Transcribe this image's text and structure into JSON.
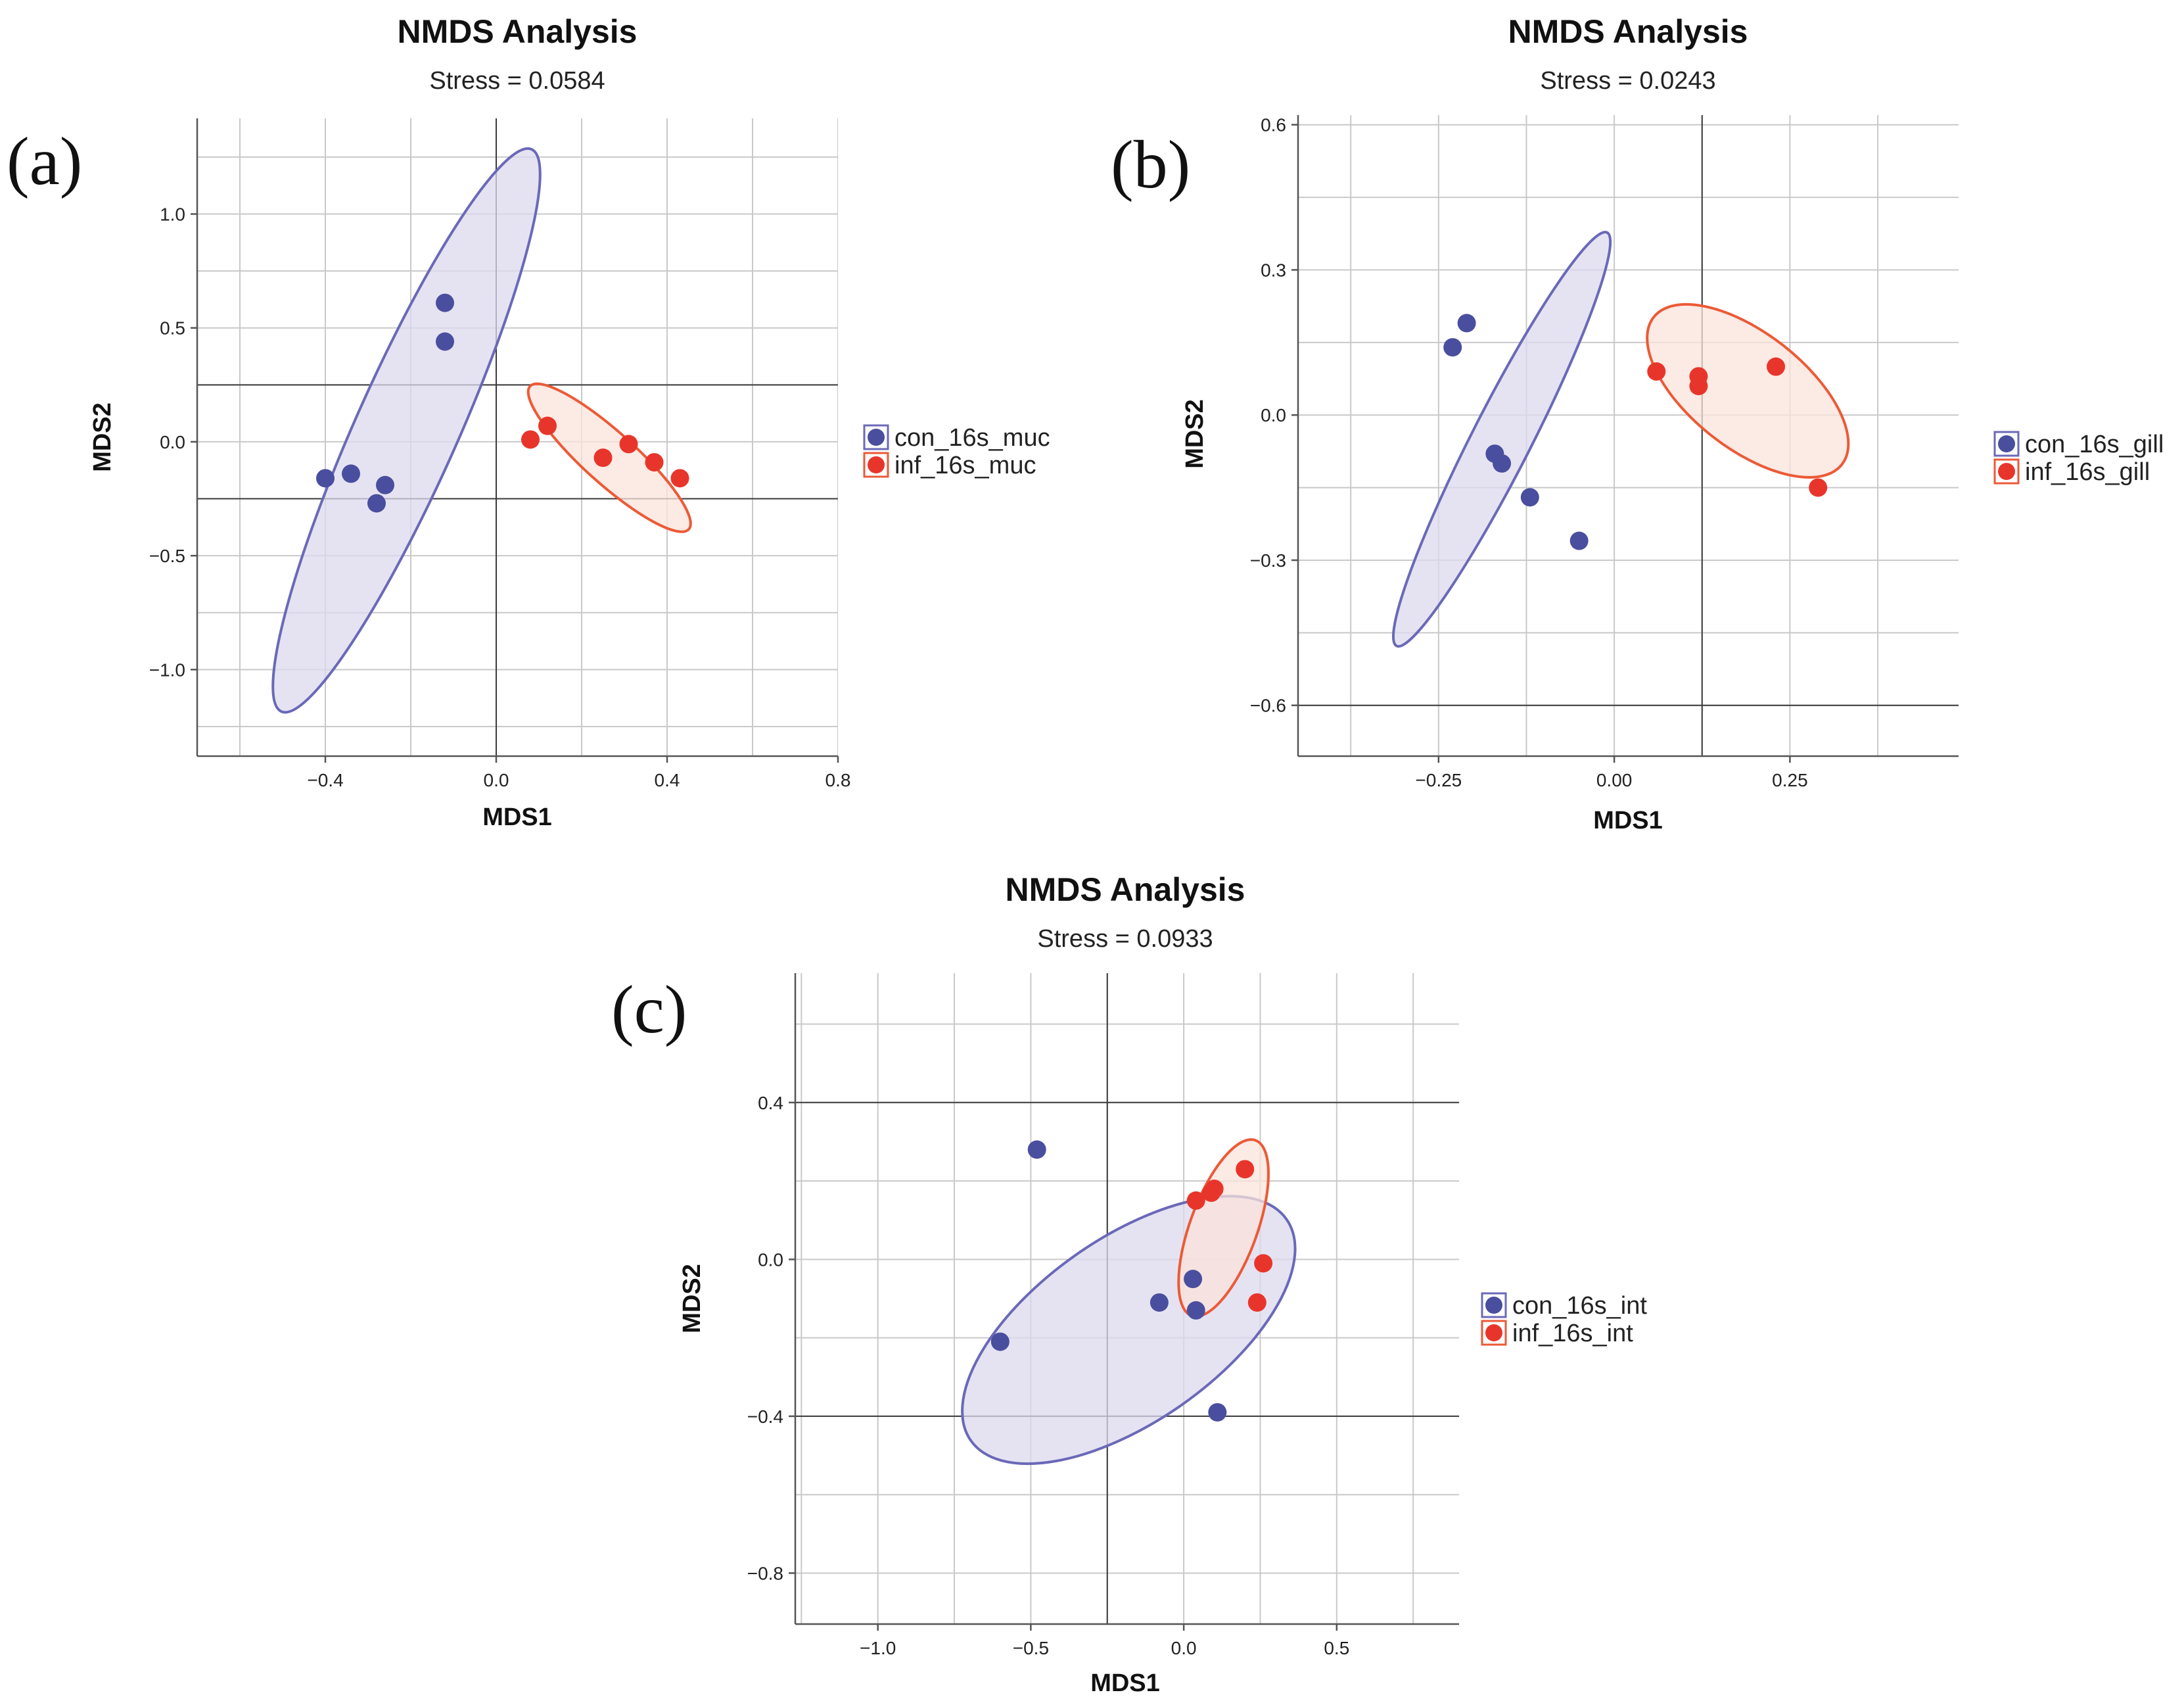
{
  "chart_data": [
    {
      "type": "scatter",
      "panel_tag": "(a)",
      "title": "NMDS Analysis",
      "subtitle": "Stress = 0.0584",
      "xlabel": "MDS1",
      "ylabel": "MDS2",
      "xlim": [
        -0.7,
        0.8
      ],
      "ylim": [
        -1.38,
        1.42
      ],
      "xticks": [
        -0.4,
        0.0,
        0.4,
        0.8
      ],
      "xtick_labels": [
        "−0.4",
        "0.0",
        "0.4",
        "0.8"
      ],
      "yticks": [
        1.0,
        0.5,
        0.0,
        -0.5,
        -1.0
      ],
      "ytick_labels": [
        "1.0",
        "0.5",
        "0.0",
        "−0.5",
        "−1.0"
      ],
      "xgrid": [
        -0.6,
        -0.4,
        -0.2,
        0.0,
        0.2,
        0.4,
        0.6,
        0.8
      ],
      "ygrid": [
        1.25,
        1.0,
        0.75,
        0.5,
        0.25,
        0.0,
        -0.25,
        -0.5,
        -0.75,
        -1.0,
        -1.25
      ],
      "ref_lines": {
        "x": [
          0.0
        ],
        "y": [
          0.25,
          -0.25
        ]
      },
      "series": [
        {
          "name": "con_16s_muc",
          "color": "#4a4e9e",
          "fill": "#dcd9ee",
          "edge": "#6a69b8",
          "x": [
            -0.12,
            -0.12,
            -0.4,
            -0.34,
            -0.26,
            -0.28
          ],
          "y": [
            0.61,
            0.44,
            -0.16,
            -0.14,
            -0.19,
            -0.27
          ],
          "ellipse": {
            "cx": -0.21,
            "cy": 0.05,
            "rx": 1.44,
            "ry": 0.12,
            "angle_deg": 66
          }
        },
        {
          "name": "inf_16s_muc",
          "color": "#e8352b",
          "fill": "#fbe3db",
          "edge": "#ec5a37",
          "x": [
            0.08,
            0.12,
            0.25,
            0.31,
            0.37,
            0.43
          ],
          "y": [
            0.01,
            0.07,
            -0.07,
            -0.01,
            -0.09,
            -0.16
          ],
          "ellipse": {
            "cx": 0.265,
            "cy": -0.07,
            "rx": 0.5,
            "ry": 0.06,
            "angle_deg": -42
          }
        }
      ],
      "legend_position": "right"
    },
    {
      "type": "scatter",
      "panel_tag": "(b)",
      "title": "NMDS Analysis",
      "subtitle": "Stress = 0.0243",
      "xlabel": "MDS1",
      "ylabel": "MDS2",
      "xlim": [
        -0.45,
        0.49
      ],
      "ylim": [
        -0.705,
        0.62
      ],
      "xticks": [
        -0.25,
        0.0,
        0.25
      ],
      "xtick_labels": [
        "−0.25",
        "0.00",
        "0.25"
      ],
      "yticks": [
        0.6,
        0.3,
        0.0,
        -0.3,
        -0.6
      ],
      "ytick_labels": [
        "0.6",
        "0.3",
        "0.0",
        "−0.3",
        "−0.6"
      ],
      "xgrid": [
        -0.375,
        -0.25,
        -0.125,
        0.0,
        0.125,
        0.25,
        0.375
      ],
      "ygrid": [
        0.6,
        0.45,
        0.3,
        0.15,
        0.0,
        -0.15,
        -0.3,
        -0.45,
        -0.6
      ],
      "ref_lines": {
        "x": [
          0.125
        ],
        "y": [
          -0.6
        ]
      },
      "series": [
        {
          "name": "con_16s_gill",
          "color": "#4a4e9e",
          "fill": "#dcd9ee",
          "edge": "#6a69b8",
          "x": [
            -0.23,
            -0.21,
            -0.17,
            -0.16,
            -0.12,
            -0.05
          ],
          "y": [
            0.14,
            0.19,
            -0.08,
            -0.1,
            -0.17,
            -0.26
          ],
          "ellipse": {
            "cx": -0.16,
            "cy": -0.05,
            "rx": 0.66,
            "ry": 0.042,
            "angle_deg": 63
          }
        },
        {
          "name": "inf_16s_gill",
          "color": "#e8352b",
          "fill": "#fbe3db",
          "edge": "#ec5a37",
          "x": [
            0.06,
            0.12,
            0.12,
            0.23,
            0.29
          ],
          "y": [
            0.09,
            0.06,
            0.08,
            0.1,
            -0.15
          ],
          "ellipse": {
            "cx": 0.19,
            "cy": 0.05,
            "rx": 0.34,
            "ry": 0.082,
            "angle_deg": -38
          }
        }
      ],
      "legend_position": "right"
    },
    {
      "type": "scatter",
      "panel_tag": "(c)",
      "title": "NMDS Analysis",
      "subtitle": "Stress = 0.0933",
      "xlabel": "MDS1",
      "ylabel": "MDS2",
      "xlim": [
        -1.27,
        0.9
      ],
      "ylim": [
        -0.93,
        0.73
      ],
      "xticks": [
        -1.0,
        -0.5,
        0.0,
        0.5
      ],
      "xtick_labels": [
        "−1.0",
        "−0.5",
        "0.0",
        "0.5"
      ],
      "yticks": [
        0.4,
        0.0,
        -0.4,
        -0.8
      ],
      "ytick_labels": [
        "0.4",
        "0.0",
        "−0.4",
        "−0.8"
      ],
      "xgrid": [
        -1.25,
        -1.0,
        -0.75,
        -0.5,
        -0.25,
        0.0,
        0.25,
        0.5,
        0.75
      ],
      "ygrid": [
        0.6,
        0.4,
        0.2,
        0.0,
        -0.2,
        -0.4,
        -0.6,
        -0.8
      ],
      "ref_lines": {
        "x": [
          -0.25
        ],
        "y": [
          0.4,
          -0.4
        ]
      },
      "series": [
        {
          "name": "con_16s_int",
          "color": "#4a4e9e",
          "fill": "#dcd9ee",
          "edge": "#6a69b8",
          "x": [
            -0.48,
            -0.6,
            -0.08,
            0.03,
            0.04,
            0.11
          ],
          "y": [
            0.28,
            -0.21,
            -0.11,
            -0.05,
            -0.13,
            -0.39
          ],
          "ellipse": {
            "cx": -0.18,
            "cy": -0.18,
            "rx": 1.26,
            "ry": 0.3,
            "angle_deg": 35
          }
        },
        {
          "name": "inf_16s_int",
          "color": "#e8352b",
          "fill": "#fbe3db",
          "edge": "#ec5a37",
          "x": [
            0.04,
            0.09,
            0.1,
            0.2,
            0.24,
            0.26
          ],
          "y": [
            0.15,
            0.17,
            0.18,
            0.23,
            -0.11,
            -0.01
          ],
          "ellipse": {
            "cx": 0.13,
            "cy": 0.08,
            "rx": 0.61,
            "ry": 0.11,
            "angle_deg": 70
          }
        }
      ],
      "legend_position": "right"
    }
  ]
}
